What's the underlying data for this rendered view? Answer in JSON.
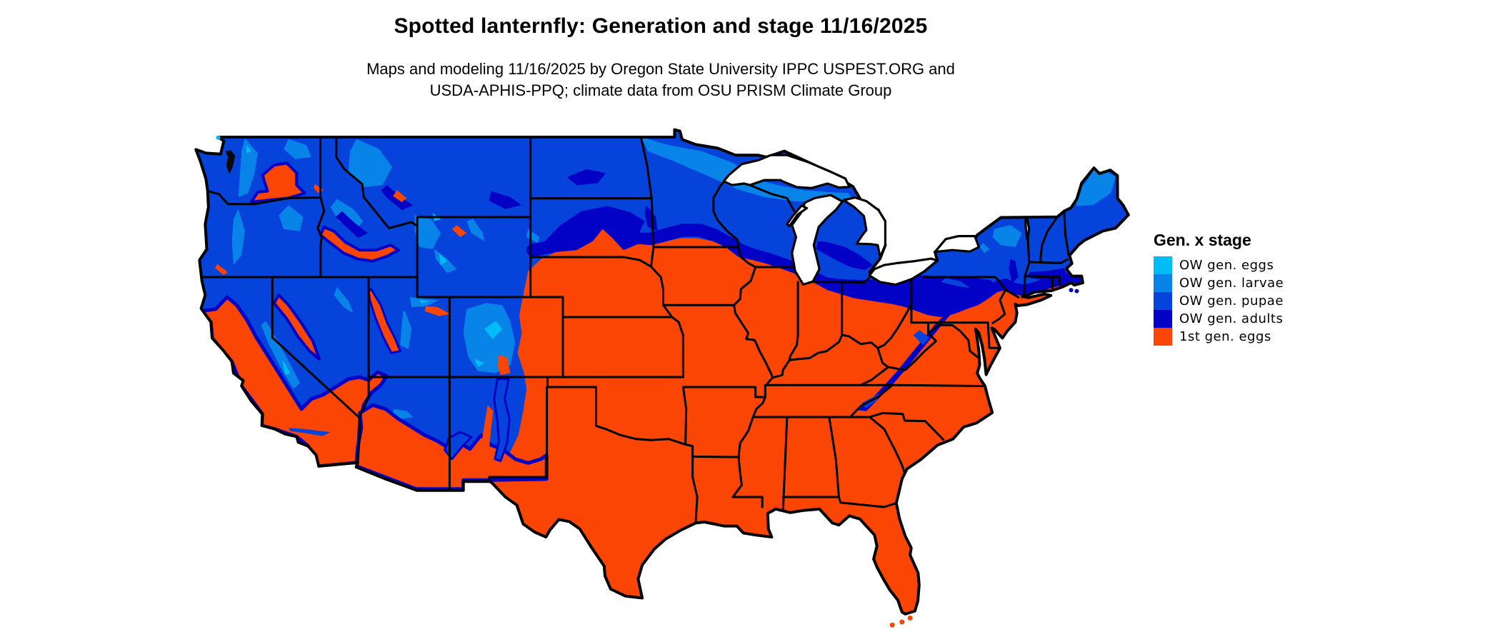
{
  "header": {
    "title": "Spotted lanternfly: Generation and stage 11/16/2025",
    "subtitle_line1": "Maps and modeling 11/16/2025 by Oregon State University IPPC USPEST.ORG and",
    "subtitle_line2": "USDA-APHIS-PPQ; climate data from OSU PRISM Climate Group"
  },
  "legend": {
    "title": "Gen. x stage",
    "items": [
      {
        "label": "OW gen. eggs",
        "color": "#00BEF5"
      },
      {
        "label": "OW gen. larvae",
        "color": "#0884E9"
      },
      {
        "label": "OW gen. pupae",
        "color": "#0543DA"
      },
      {
        "label": "OW gen. adults",
        "color": "#0301C6"
      },
      {
        "label": "1st gen. eggs",
        "color": "#FA4505"
      }
    ]
  },
  "map": {
    "region": "contiguous United States with state borders",
    "border_color": "#000000",
    "water_color": "#ffffff",
    "base_category_north": "OW gen. pupae",
    "base_category_south": "1st gen. eggs"
  },
  "chart_data": {
    "type": "choropleth_map",
    "title": "Spotted lanternfly: Generation and stage 11/16/2025",
    "legend_title": "Gen. x stage",
    "categories": [
      "OW gen. eggs",
      "OW gen. larvae",
      "OW gen. pupae",
      "OW gen. adults",
      "1st gen. eggs"
    ],
    "colors": [
      "#00BEF5",
      "#0884E9",
      "#0543DA",
      "#0301C6",
      "#FA4505"
    ],
    "legend_position": "right",
    "region_summary": {
      "1st gen. eggs": "southern half of the US: California valleys and coast, Southwest deserts, Texas, Great Plains south of South Dakota, Midwest south of ~42N, entire Southeast, mid-Atlantic lowlands, Long Island",
      "OW gen. adults": "transition band along the blue/orange boundary: central South Dakota, northern Iowa, southern Wisconsin/Michigan, northern Ohio, most of Pennsylvania, Appalachian ridge, southern New England",
      "OW gen. pupae": "most of the northern tier: Pacific Northwest, northern Rockies, Dakotas, Minnesota, Wisconsin, Michigan, New York, New England",
      "OW gen. larvae": "coldest areas: northern Minnesota, Lake Superior shore, northern Maine, Adirondacks, Cascades and Rocky Mountain highlands",
      "OW gen. eggs": "highest mountain tips in Colorado, Wyoming, Sierra Nevada and Montana"
    }
  }
}
